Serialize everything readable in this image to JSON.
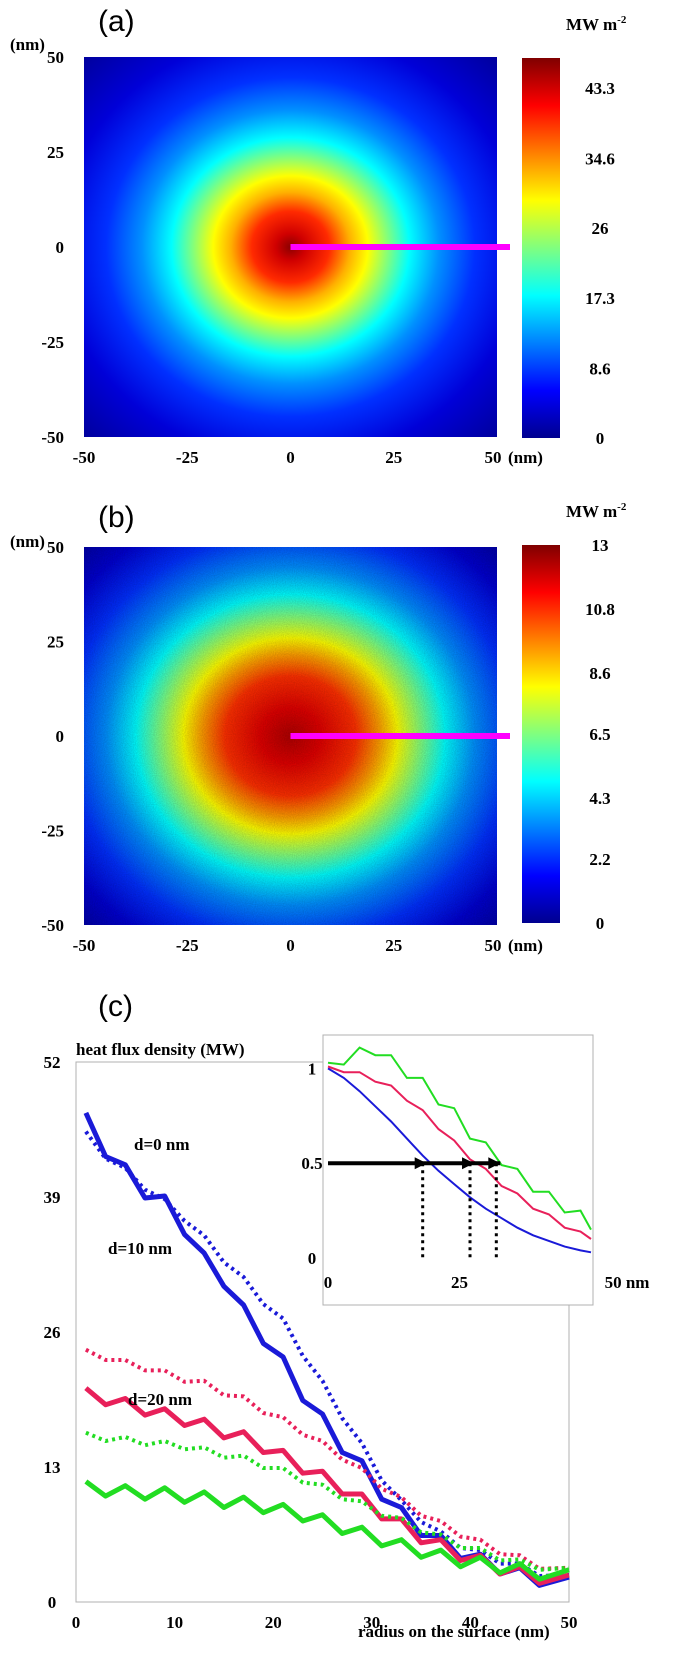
{
  "chart_data": [
    {
      "type": "heatmap",
      "panel_label": "(a)",
      "y_unit": "(nm)",
      "x_unit_suffix": "(nm)",
      "x_ticks": [
        "-50",
        "-25",
        "0",
        "25",
        "50"
      ],
      "y_ticks": [
        "50",
        "25",
        "0",
        "-25",
        "-50"
      ],
      "xlim": [
        -50,
        50
      ],
      "ylim": [
        -50,
        50
      ],
      "colorbar_title": "MW m",
      "colorbar_title_sup": "-2",
      "colorbar_ticks": [
        "43.3",
        "34.6",
        "26",
        "17.3",
        "8.6",
        "0"
      ],
      "colorbar_range": [
        0,
        47
      ],
      "peak_center": [
        0,
        0
      ],
      "peak_value": 46,
      "profile_line": {
        "from": [
          0,
          0
        ],
        "to": [
          50,
          0
        ],
        "color": "#ff00ff"
      }
    },
    {
      "type": "heatmap",
      "panel_label": "(b)",
      "y_unit": "(nm)",
      "x_unit_suffix": "(nm)",
      "x_ticks": [
        "-50",
        "-25",
        "0",
        "25",
        "50"
      ],
      "y_ticks": [
        "50",
        "25",
        "0",
        "-25",
        "-50"
      ],
      "xlim": [
        -50,
        50
      ],
      "ylim": [
        -50,
        50
      ],
      "colorbar_title": "MW m",
      "colorbar_title_sup": "-2",
      "colorbar_ticks": [
        "13",
        "10.8",
        "8.6",
        "6.5",
        "4.3",
        "2.2",
        "0"
      ],
      "colorbar_range": [
        0,
        13
      ],
      "peak_center": [
        0,
        0
      ],
      "peak_value": 12,
      "profile_line": {
        "from": [
          0,
          0
        ],
        "to": [
          50,
          0
        ],
        "color": "#ff00ff"
      }
    },
    {
      "type": "line",
      "panel_label": "(c)",
      "ylabel": "heat flux density (MW)",
      "xlabel": "radius on the surface (nm)",
      "xlim": [
        0,
        50
      ],
      "ylim": [
        0,
        52
      ],
      "x_ticks": [
        "0",
        "10",
        "20",
        "30",
        "40",
        "50"
      ],
      "y_ticks": [
        "52",
        "39",
        "26",
        "13",
        "0"
      ],
      "annotations": [
        "d=0 nm",
        "d=10 nm",
        "d=20 nm"
      ],
      "x": [
        1,
        3,
        5,
        7,
        9,
        11,
        13,
        15,
        17,
        19,
        21,
        23,
        25,
        27,
        29,
        31,
        33,
        35,
        37,
        39,
        41,
        43,
        45,
        47,
        50
      ],
      "series": [
        {
          "color": "#1a1ad8",
          "style": "solid",
          "values": [
            46.5,
            43.5,
            41.5,
            39.5,
            38.5,
            36,
            33,
            31,
            28,
            25.5,
            23,
            20,
            17.5,
            15,
            13,
            10.5,
            8.5,
            7,
            5.8,
            4.8,
            4,
            3.3,
            2.7,
            2.2,
            1.8
          ]
        },
        {
          "color": "#1a1ad8",
          "style": "dotted",
          "values": [
            45,
            43,
            41.5,
            40,
            38.5,
            37,
            35,
            33,
            31,
            29,
            27,
            24,
            21,
            18,
            15,
            12,
            9.5,
            8,
            6.5,
            5.5,
            4.7,
            4,
            3.4,
            2.8,
            2.3
          ]
        },
        {
          "color": "#e8205a",
          "style": "solid",
          "values": [
            20,
            19.6,
            19,
            18.6,
            18,
            17.6,
            17,
            16.4,
            15.8,
            15,
            14,
            13,
            12,
            11,
            9.8,
            8.6,
            7.4,
            6.3,
            5.4,
            4.6,
            3.9,
            3.3,
            2.8,
            2.4,
            2
          ]
        },
        {
          "color": "#e8205a",
          "style": "dotted",
          "values": [
            24,
            23.6,
            23,
            22.6,
            22,
            21.5,
            21,
            20.2,
            19.5,
            18.5,
            17.5,
            16.4,
            15.2,
            14,
            12.6,
            11.2,
            9.8,
            8.6,
            7.5,
            6.6,
            5.7,
            4.9,
            4.2,
            3.5,
            3
          ]
        },
        {
          "color": "#22dd22",
          "style": "solid",
          "values": [
            11,
            10.8,
            10.6,
            10.5,
            10.4,
            10.2,
            10,
            9.7,
            9.5,
            9.2,
            8.8,
            8.4,
            7.8,
            7.2,
            6.6,
            6,
            5.4,
            4.9,
            4.4,
            4,
            3.7,
            3.4,
            3.1,
            2.8,
            2.5
          ]
        },
        {
          "color": "#22dd22",
          "style": "dotted",
          "values": [
            16,
            15.8,
            15.6,
            15.4,
            15.2,
            15,
            14.6,
            14.2,
            13.8,
            13.2,
            12.6,
            11.8,
            11,
            10.2,
            9.4,
            8.6,
            7.8,
            7,
            6.2,
            5.5,
            4.9,
            4.3,
            3.8,
            3.4,
            3
          ]
        }
      ],
      "inset": {
        "x_ticks": [
          "0",
          "25",
          "50 nm"
        ],
        "y_ticks": [
          "1",
          "0.5",
          "0"
        ],
        "xlim": [
          0,
          50
        ],
        "ylim": [
          0,
          1.15
        ],
        "x": [
          0,
          3,
          6,
          9,
          12,
          15,
          18,
          21,
          24,
          27,
          30,
          33,
          36,
          39,
          42,
          45,
          48,
          50
        ],
        "series": [
          {
            "color": "#1a1ad8",
            "values": [
              1,
              0.95,
              0.88,
              0.8,
              0.72,
              0.63,
              0.54,
              0.46,
              0.39,
              0.32,
              0.26,
              0.21,
              0.16,
              0.12,
              0.09,
              0.06,
              0.04,
              0.03
            ]
          },
          {
            "color": "#e8205a",
            "values": [
              1,
              0.99,
              0.97,
              0.94,
              0.9,
              0.84,
              0.77,
              0.69,
              0.61,
              0.53,
              0.46,
              0.39,
              0.33,
              0.27,
              0.22,
              0.17,
              0.13,
              0.11
            ]
          },
          {
            "color": "#22dd22",
            "values": [
              1,
              1.05,
              1.08,
              1.1,
              1.04,
              0.98,
              0.92,
              0.84,
              0.76,
              0.66,
              0.58,
              0.52,
              0.44,
              0.38,
              0.32,
              0.27,
              0.22,
              0.18
            ]
          }
        ],
        "half_level": 0.5,
        "half_width_marks": [
          18,
          27,
          32
        ]
      }
    }
  ]
}
